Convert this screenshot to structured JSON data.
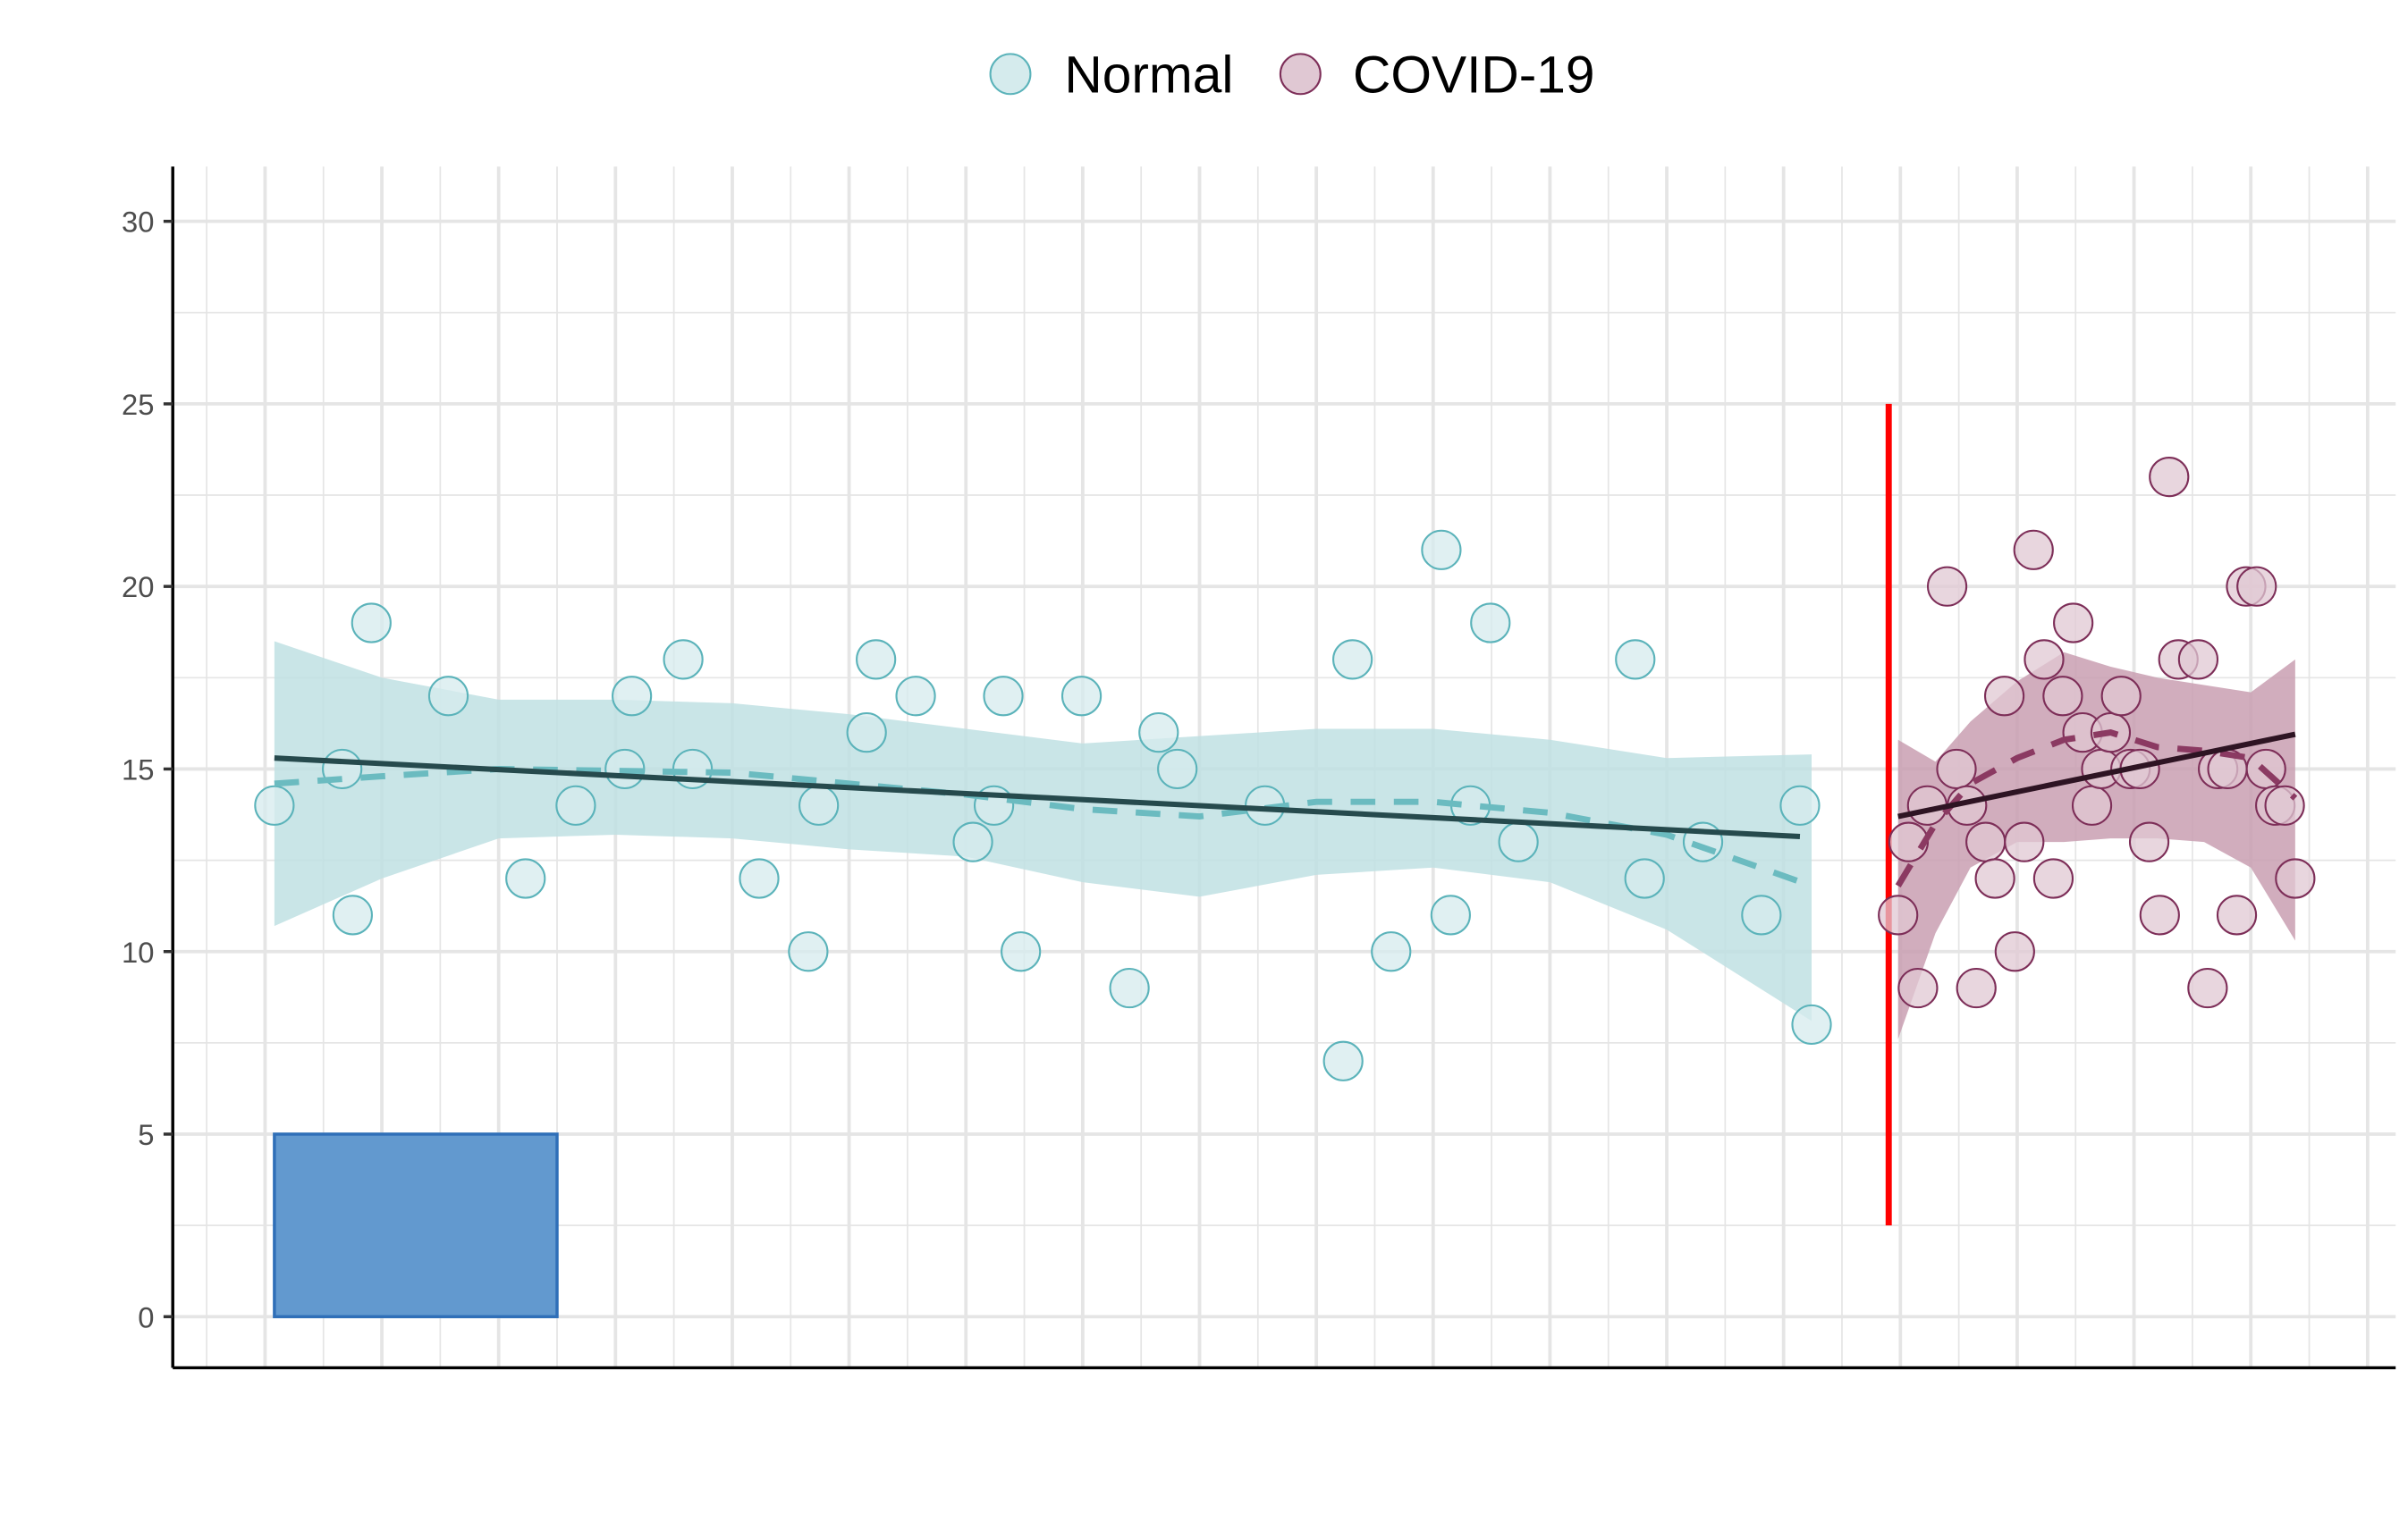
{
  "chart_data": {
    "type": "scatter",
    "title": "",
    "xlabel": "",
    "ylabel": "",
    "xlim": [
      -0.79,
      18.24
    ],
    "ylim": [
      -1.4,
      31.5
    ],
    "yticks": [
      "0",
      "5",
      "10",
      "15",
      "20",
      "25",
      "30"
    ],
    "x_tick_labels_shown": false,
    "grid": true,
    "legend": {
      "position": "top",
      "entries": [
        "Normal",
        "COVID-19"
      ]
    },
    "series": [
      {
        "name": "Normal",
        "fill": "#d5ebed",
        "stroke": "#5bb3ba",
        "ribbon_color": "#bfe0e3",
        "smooth_color": "#6bbbc0",
        "linear_color": "#264a4d",
        "x": [
          0.08,
          0.66,
          0.75,
          0.91,
          1.57,
          2.23,
          2.66,
          3.08,
          3.14,
          3.58,
          3.66,
          4.23,
          4.65,
          4.74,
          5.15,
          5.23,
          5.57,
          6.06,
          6.24,
          6.32,
          6.47,
          6.99,
          7.4,
          7.65,
          7.81,
          8.56,
          9.23,
          9.31,
          9.64,
          10.07,
          10.15,
          10.32,
          10.49,
          10.73,
          11.73,
          11.81,
          12.31,
          12.81,
          13.14,
          13.24
        ],
        "y": [
          14,
          15,
          11,
          19,
          17,
          12,
          14,
          15,
          17,
          18,
          15,
          12,
          10,
          14,
          16,
          18,
          17,
          13,
          14,
          17,
          10,
          17,
          9,
          16,
          15,
          14,
          7,
          18,
          10,
          21,
          11,
          14,
          19,
          13,
          18,
          12,
          13,
          11,
          14,
          8
        ],
        "smooth": {
          "x": [
            0.08,
            1,
            2,
            3,
            4,
            5,
            6,
            7,
            8,
            9,
            10,
            11,
            12,
            13.24
          ],
          "mean": [
            14.6,
            14.8,
            15.0,
            14.95,
            14.9,
            14.6,
            14.3,
            13.9,
            13.7,
            14.1,
            14.1,
            13.8,
            13.2,
            11.8
          ],
          "upper": [
            18.5,
            17.5,
            16.9,
            16.9,
            16.8,
            16.5,
            16.1,
            15.7,
            15.9,
            16.1,
            16.1,
            15.8,
            15.3,
            15.4
          ],
          "lower": [
            10.7,
            12.0,
            13.1,
            13.2,
            13.1,
            12.8,
            12.6,
            11.9,
            11.5,
            12.1,
            12.3,
            11.9,
            10.6,
            8.1
          ]
        },
        "linear": {
          "x": [
            0.08,
            13.14
          ],
          "y": [
            15.3,
            13.15
          ]
        }
      },
      {
        "name": "COVID-19",
        "fill": "#e0c8d3",
        "stroke": "#7d2e58",
        "ribbon_color": "#c99fb2",
        "smooth_color": "#8b3a62",
        "linear_color": "#2e1423",
        "x": [
          13.98,
          14.07,
          14.15,
          14.23,
          14.4,
          14.48,
          14.57,
          14.65,
          14.73,
          14.81,
          14.89,
          14.98,
          15.06,
          15.14,
          15.23,
          15.31,
          15.39,
          15.48,
          15.56,
          15.64,
          15.72,
          15.8,
          15.89,
          15.97,
          16.05,
          16.13,
          16.22,
          16.3,
          16.38,
          16.55,
          16.63,
          16.72,
          16.8,
          16.88,
          16.96,
          17.05,
          17.13,
          17.21,
          17.29,
          17.38
        ],
        "y": [
          11,
          13,
          9,
          14,
          20,
          15,
          14,
          9,
          13,
          12,
          17,
          10,
          13,
          21,
          18,
          12,
          17,
          19,
          16,
          14,
          15,
          16,
          17,
          15,
          15,
          13,
          11,
          23,
          18,
          18,
          9,
          15,
          15,
          11,
          20,
          20,
          15,
          14,
          14,
          12
        ],
        "smooth": {
          "x": [
            13.98,
            14.3,
            14.6,
            15.0,
            15.4,
            15.8,
            16.2,
            16.6,
            17.0,
            17.38
          ],
          "mean": [
            11.8,
            13.5,
            14.6,
            15.3,
            15.8,
            16.0,
            15.6,
            15.5,
            15.3,
            14.2
          ],
          "upper": [
            15.8,
            15.2,
            16.3,
            17.4,
            18.2,
            17.8,
            17.5,
            17.3,
            17.1,
            18.0
          ],
          "lower": [
            7.6,
            10.5,
            12.3,
            13.0,
            13.0,
            13.1,
            13.1,
            13.0,
            12.3,
            10.3
          ]
        },
        "linear": {
          "x": [
            13.98,
            17.38
          ],
          "y": [
            13.7,
            15.95
          ]
        }
      }
    ],
    "annotations": [
      {
        "type": "vline",
        "x": 13.9,
        "y_from": 2.5,
        "y_to": 25,
        "color": "#ff0000"
      },
      {
        "type": "rect",
        "x_from": 0.08,
        "x_to": 2.5,
        "y_from": 0,
        "y_to": 5,
        "fill": "#6299cf",
        "stroke": "#2f6fb8"
      }
    ]
  }
}
